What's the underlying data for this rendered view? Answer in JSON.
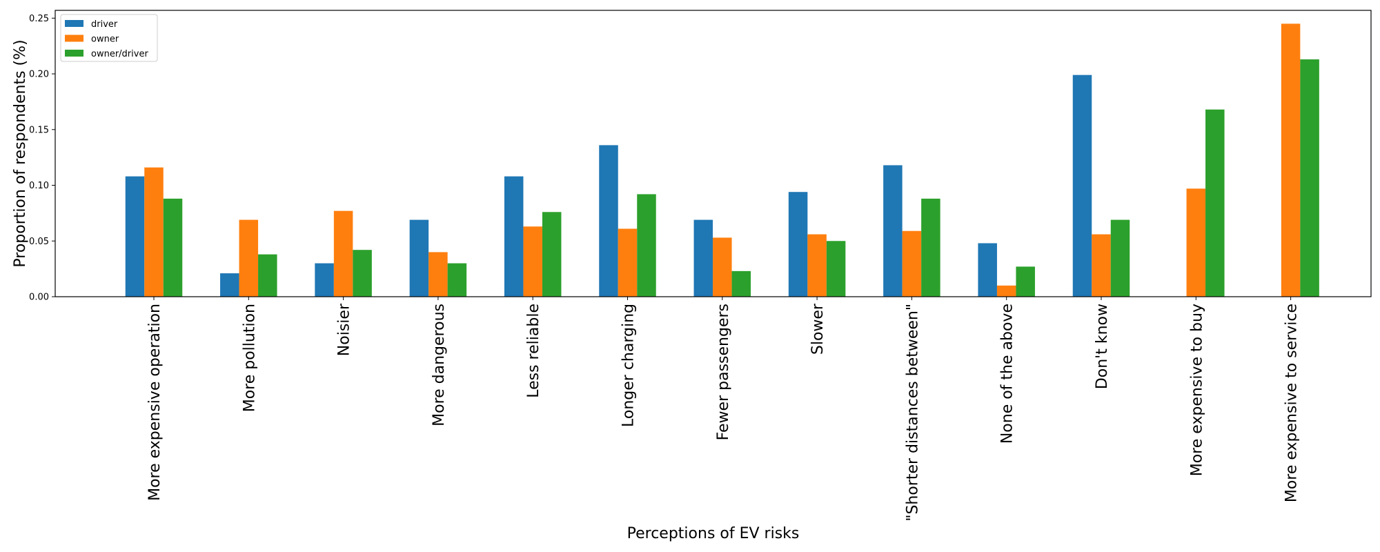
{
  "chart_data": {
    "type": "bar",
    "title": "",
    "xlabel": "Perceptions of EV risks",
    "ylabel": "Proportion of respondents (%)",
    "ylim": [
      0,
      0.257
    ],
    "yticks": [
      0.0,
      0.05,
      0.1,
      0.15,
      0.2,
      0.25
    ],
    "ytick_labels": [
      "0.00",
      "0.05",
      "0.10",
      "0.15",
      "0.20",
      "0.25"
    ],
    "grid": false,
    "legend_position": "top-left",
    "categories": [
      "More expensive operation",
      "More pollution",
      "Noisier",
      "More dangerous",
      "Less reliable",
      "Longer charging",
      "Fewer passengers",
      "Slower",
      "\"Shorter distances between\"",
      "None of the above",
      "Don't know",
      "More expensive to buy",
      "More expensive to service"
    ],
    "series": [
      {
        "name": "driver",
        "color": "#1f77b4",
        "values": [
          0.108,
          0.021,
          0.03,
          0.069,
          0.108,
          0.136,
          0.069,
          0.094,
          0.118,
          0.048,
          0.199,
          0.0,
          0.0
        ]
      },
      {
        "name": "owner",
        "color": "#ff7f0e",
        "values": [
          0.116,
          0.069,
          0.077,
          0.04,
          0.063,
          0.061,
          0.053,
          0.056,
          0.059,
          0.01,
          0.056,
          0.097,
          0.245
        ]
      },
      {
        "name": "owner/driver",
        "color": "#2ca02c",
        "values": [
          0.088,
          0.038,
          0.042,
          0.03,
          0.076,
          0.092,
          0.023,
          0.05,
          0.088,
          0.027,
          0.069,
          0.168,
          0.213
        ]
      }
    ]
  }
}
